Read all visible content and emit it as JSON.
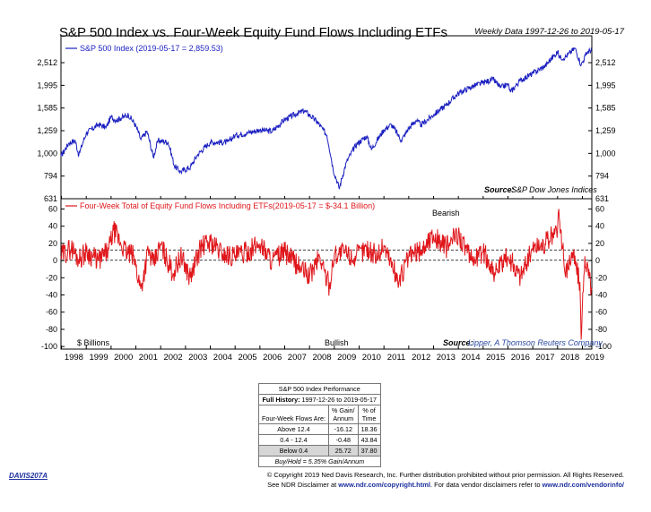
{
  "title": "S&P 500 Index vs. Four-Week Equity Fund Flows Including ETFs",
  "subtitle": "Weekly Data 1997-12-26 to 2019-05-17",
  "colors": {
    "top_line": "#1a1fc0",
    "bottom_line": "#e0161b",
    "dashed": "#000000",
    "link": "#1c2f9e"
  },
  "chart_data": [
    {
      "type": "line",
      "scale": "log",
      "legend": "S&P 500 Index (2019-05-17 = 2,859.53)",
      "source": "Source:",
      "source_name": "S&P Dow Jones Indices",
      "yticks": [
        "2,512",
        "1,995",
        "1,585",
        "1,259",
        "1,000",
        "794",
        "631"
      ],
      "yticks_values": [
        2512,
        1995,
        1585,
        1259,
        1000,
        794,
        631
      ],
      "ylim": [
        631,
        3300
      ],
      "xlim": [
        1997.98,
        2019.38
      ],
      "series": [
        {
          "x": [
            1997.98,
            1998.3,
            1998.55,
            1998.7,
            1999.0,
            1999.5,
            1999.8,
            2000.0,
            2000.2,
            2000.7,
            2001.0,
            2001.2,
            2001.45,
            2001.7,
            2001.9,
            2002.3,
            2002.55,
            2002.8,
            2003.2,
            2003.5,
            2004.0,
            2004.7,
            2005.0,
            2005.5,
            2006.0,
            2006.5,
            2007.0,
            2007.5,
            2007.8,
            2008.3,
            2008.7,
            2008.95,
            2009.2,
            2009.5,
            2009.9,
            2010.3,
            2010.5,
            2011.0,
            2011.3,
            2011.7,
            2012.0,
            2012.3,
            2012.5,
            2013.0,
            2013.5,
            2014.0,
            2014.5,
            2015.0,
            2015.4,
            2015.7,
            2016.0,
            2016.1,
            2016.5,
            2017.0,
            2017.5,
            2018.0,
            2018.1,
            2018.3,
            2018.7,
            2018.95,
            2019.2,
            2019.38
          ],
          "values": [
            970,
            1110,
            1140,
            980,
            1230,
            1340,
            1300,
            1450,
            1400,
            1480,
            1320,
            1150,
            1250,
            960,
            1140,
            1120,
            880,
            830,
            870,
            990,
            1120,
            1120,
            1200,
            1230,
            1270,
            1250,
            1410,
            1500,
            1540,
            1380,
            1200,
            850,
            700,
            920,
            1100,
            1190,
            1040,
            1270,
            1340,
            1140,
            1290,
            1400,
            1330,
            1480,
            1630,
            1840,
            1960,
            2050,
            2120,
            1950,
            2020,
            1860,
            2100,
            2250,
            2430,
            2800,
            2650,
            2650,
            2910,
            2450,
            2800,
            2860
          ]
        }
      ]
    },
    {
      "type": "line",
      "legend": "Four-Week Total of Equity Fund Flows Including ETFs(2019-05-17 = $-34.1 Billion)",
      "top_label": "Bearish",
      "bottom_label": "Bullish",
      "unit_label": "$ Billions",
      "source": "Source:",
      "source_name": "Lipper, A Thomson Reuters Company",
      "yticks": [
        "60",
        "40",
        "20",
        "0",
        "-20",
        "-40",
        "-60",
        "-80",
        "-100"
      ],
      "yticks_values": [
        60,
        40,
        20,
        0,
        -20,
        -40,
        -60,
        -80,
        -100
      ],
      "ylim": [
        -103,
        72
      ],
      "xlim": [
        1997.98,
        2019.38
      ],
      "reference_lines": [
        12.4,
        0.4
      ],
      "series": [
        {
          "x": [
            1997.98,
            1998.4,
            1998.7,
            1999.0,
            1999.5,
            1999.9,
            2000.1,
            2000.6,
            2000.9,
            2001.2,
            2001.5,
            2001.7,
            2002.0,
            2002.5,
            2002.8,
            2003.2,
            2003.6,
            2004.0,
            2004.5,
            2005.0,
            2005.5,
            2006.0,
            2006.5,
            2007.0,
            2007.5,
            2008.0,
            2008.4,
            2008.8,
            2009.0,
            2009.4,
            2009.8,
            2010.3,
            2010.7,
            2011.0,
            2011.6,
            2012.0,
            2012.5,
            2013.0,
            2013.5,
            2014.0,
            2014.5,
            2015.0,
            2015.5,
            2016.0,
            2016.5,
            2017.0,
            2017.5,
            2018.0,
            2018.05,
            2018.3,
            2018.6,
            2018.9,
            2018.95,
            2019.1,
            2019.38
          ],
          "values": [
            5,
            15,
            2,
            10,
            0,
            12,
            35,
            10,
            5,
            -33,
            12,
            -5,
            18,
            -15,
            5,
            -20,
            15,
            22,
            8,
            5,
            10,
            20,
            0,
            10,
            -5,
            -18,
            5,
            -30,
            8,
            10,
            3,
            15,
            5,
            18,
            -25,
            5,
            12,
            30,
            15,
            32,
            0,
            10,
            -15,
            5,
            -18,
            15,
            20,
            35,
            60,
            -15,
            10,
            -25,
            -92,
            5,
            -34
          ]
        }
      ]
    }
  ],
  "x_axis": {
    "labels": [
      "1998",
      "1999",
      "2000",
      "2001",
      "2002",
      "2003",
      "2004",
      "2005",
      "2006",
      "2007",
      "2008",
      "2009",
      "2010",
      "2011",
      "2012",
      "2013",
      "2014",
      "2015",
      "2016",
      "2017",
      "2018",
      "2019"
    ]
  },
  "table": {
    "title": "S&P 500 Index Performance",
    "history_label": "Full History:",
    "history_range": "1997-12-26 to 2019-05-17",
    "col1": "% Gain/",
    "col1b": "Annum",
    "col2": "% of",
    "col2b": "Time",
    "row_header": "Four-Week Flows Are:",
    "rows": [
      {
        "label": "Above 12.4",
        "gain": "-16.12",
        "time": "18.36"
      },
      {
        "label": "0.4 - 12.4",
        "gain": "-0.48",
        "time": "43.84"
      },
      {
        "label": "Below 0.4",
        "gain": "25.72",
        "time": "37.80"
      }
    ],
    "footer": "Buy/Hold = 5.35% Gain/Annum"
  },
  "footer": {
    "code": "DAVIS207A",
    "copyright": "© Copyright 2019 Ned Davis Research, Inc. Further distribution prohibited without prior permission. All Rights Reserved.",
    "disclaimer_pre": "See NDR Disclaimer at ",
    "disclaimer_link1": "www.ndr.com/copyright.html",
    "disclaimer_mid": ". For data vendor disclaimers refer to ",
    "disclaimer_link2": "www.ndr.com/vendorinfo/"
  }
}
